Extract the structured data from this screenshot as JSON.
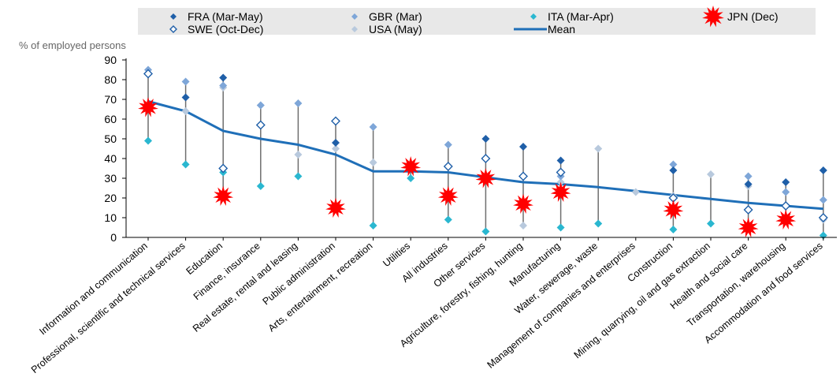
{
  "chart_data": {
    "type": "scatter",
    "ylabel": "% of employed persons",
    "ylim": [
      0,
      90
    ],
    "yticks": [
      0,
      10,
      20,
      30,
      40,
      50,
      60,
      70,
      80,
      90
    ],
    "grid": false,
    "legend_position": "top",
    "categories": [
      "Information and communication",
      "Professional, scientific and technical services",
      "Education",
      "Finance, insurance",
      "Real estate, rental and leasing",
      "Public administration",
      "Arts, entertainment, recreation",
      "Utilities",
      "All industries",
      "Other services",
      "Agriculture, forestry, fishing, hunting",
      "Manufacturing",
      "Water, sewerage, waste",
      "Management of companies and enterprises",
      "Construction",
      "Mining, quarrying, oil and gas extraction",
      "Health and social care",
      "Transportation, warehousing",
      "Accommodation and food services"
    ],
    "series": [
      {
        "name": "FRA (Mar-May)",
        "marker": "diamond-filled",
        "color": "#1f5fa8",
        "values": [
          null,
          71,
          81,
          null,
          null,
          48,
          null,
          null,
          36,
          50,
          46,
          39,
          null,
          null,
          34,
          null,
          27,
          28,
          34
        ]
      },
      {
        "name": "GBR (Mar)",
        "marker": "diamond-filled",
        "color": "#7ea6d8",
        "values": [
          85,
          79,
          77,
          67,
          68,
          null,
          56,
          null,
          47,
          null,
          null,
          31,
          null,
          null,
          37,
          null,
          31,
          23,
          19
        ]
      },
      {
        "name": "ITA (Mar-Apr)",
        "marker": "diamond-filled",
        "color": "#2ab7d0",
        "values": [
          49,
          37,
          33,
          26,
          31,
          null,
          6,
          30,
          9,
          3,
          null,
          5,
          7,
          null,
          4,
          7,
          null,
          null,
          1
        ]
      },
      {
        "name": "JPN (Dec)",
        "marker": "burst",
        "color": "#ff0000",
        "values": [
          66,
          null,
          21,
          null,
          null,
          15,
          null,
          36,
          21,
          30,
          17,
          23,
          null,
          null,
          14,
          null,
          5,
          9,
          null
        ]
      },
      {
        "name": "SWE (Oct-Dec)",
        "marker": "diamond-open",
        "color": "#1f5fa8",
        "values": [
          83,
          null,
          35,
          57,
          null,
          59,
          null,
          null,
          36,
          40,
          31,
          33,
          null,
          null,
          20,
          null,
          14,
          16,
          10
        ]
      },
      {
        "name": "USA (May)",
        "marker": "diamond-filled",
        "color": "#b8c9dd",
        "values": [
          null,
          64,
          76,
          67,
          42,
          45,
          38,
          null,
          null,
          null,
          6,
          28,
          45,
          23,
          21,
          32,
          26,
          16,
          9
        ]
      },
      {
        "name": "Mean",
        "marker": "line",
        "color": "#1f6fb8",
        "values": [
          69,
          64,
          54,
          50,
          47,
          42,
          33.5,
          33.5,
          33,
          30.5,
          28,
          27,
          25.5,
          23.5,
          21.5,
          19.5,
          17.5,
          16,
          14.5
        ]
      }
    ]
  }
}
